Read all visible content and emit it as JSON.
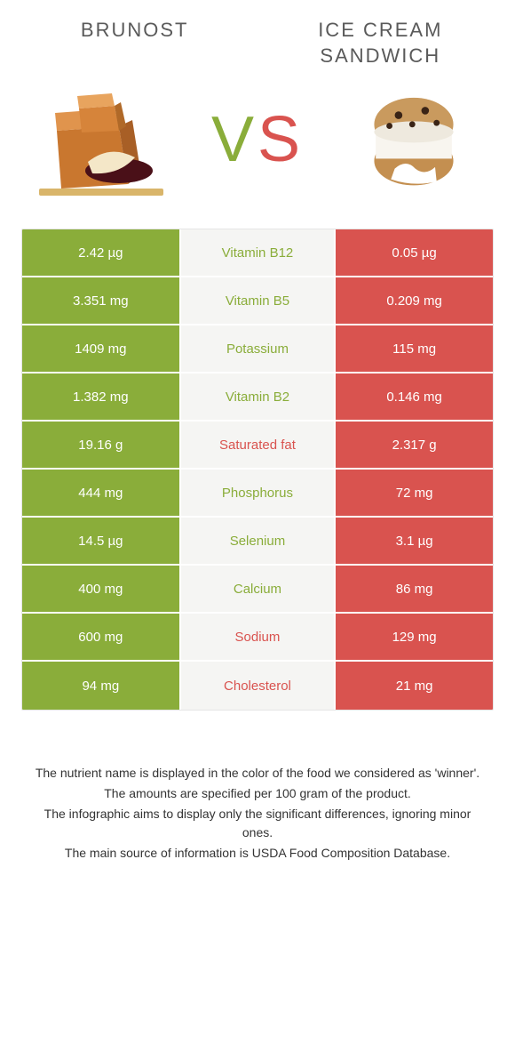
{
  "colors": {
    "left_bg": "#8aad3a",
    "right_bg": "#d9534f",
    "mid_bg": "#f5f5f3",
    "nutrient_left_text": "#8aad3a",
    "nutrient_right_text": "#d9534f",
    "title_color": "#5a5a5a",
    "value_text": "#ffffff",
    "footer_color": "#333333"
  },
  "header": {
    "left_title": "BRUNOST",
    "right_title": "ICE CREAM SANDWICH",
    "vs_v": "V",
    "vs_s": "S"
  },
  "rows": [
    {
      "left": "2.42 µg",
      "mid": "Vitamin B12",
      "right": "0.05 µg",
      "winner": "left"
    },
    {
      "left": "3.351 mg",
      "mid": "Vitamin B5",
      "right": "0.209 mg",
      "winner": "left"
    },
    {
      "left": "1409 mg",
      "mid": "Potassium",
      "right": "115 mg",
      "winner": "left"
    },
    {
      "left": "1.382 mg",
      "mid": "Vitamin B2",
      "right": "0.146 mg",
      "winner": "left"
    },
    {
      "left": "19.16 g",
      "mid": "Saturated fat",
      "right": "2.317 g",
      "winner": "right"
    },
    {
      "left": "444 mg",
      "mid": "Phosphorus",
      "right": "72 mg",
      "winner": "left"
    },
    {
      "left": "14.5 µg",
      "mid": "Selenium",
      "right": "3.1 µg",
      "winner": "left"
    },
    {
      "left": "400 mg",
      "mid": "Calcium",
      "right": "86 mg",
      "winner": "left"
    },
    {
      "left": "600 mg",
      "mid": "Sodium",
      "right": "129 mg",
      "winner": "right"
    },
    {
      "left": "94 mg",
      "mid": "Cholesterol",
      "right": "21 mg",
      "winner": "right"
    }
  ],
  "footer": {
    "line1": "The nutrient name is displayed in the color of the food we considered as 'winner'.",
    "line2": "The amounts are specified per 100 gram of the product.",
    "line3": "The infographic aims to display only the significant differences, ignoring minor ones.",
    "line4": "The main source of information is USDA Food Composition Database."
  }
}
